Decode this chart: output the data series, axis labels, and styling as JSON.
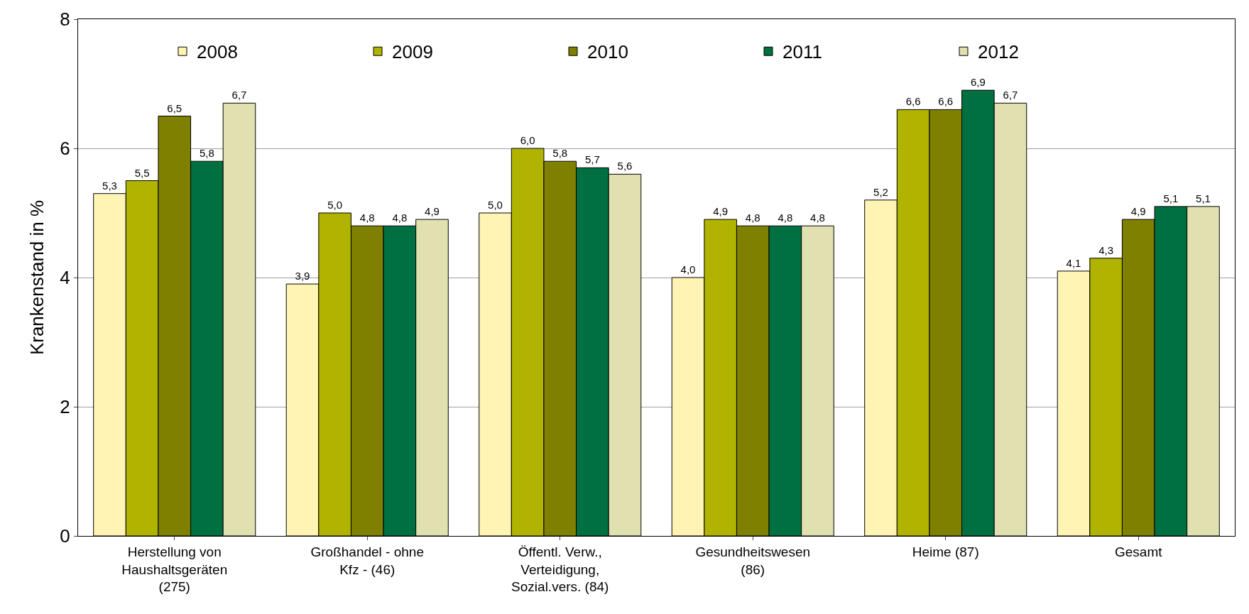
{
  "chart_data": {
    "type": "bar",
    "ylabel": "Krankenstand in %",
    "categories": [
      "Herstellung von Haushaltsgeräten (275)",
      "Großhandel - ohne Kfz - (46)",
      "Öffentl. Verw., Verteidigung, Sozial.vers. (84)",
      "Gesundheitswesen (86)",
      "Heime (87)",
      "Gesamt"
    ],
    "series": [
      {
        "name": "2008",
        "color": "#fff4b4",
        "values": [
          5.3,
          3.9,
          5.0,
          4.0,
          5.2,
          4.1
        ],
        "value_labels": [
          "5,3",
          "3,9",
          "5,0",
          "4,0",
          "5,2",
          "4,1"
        ]
      },
      {
        "name": "2009",
        "color": "#b0b400",
        "values": [
          5.5,
          5.0,
          6.0,
          4.9,
          6.6,
          4.3
        ],
        "value_labels": [
          "5,5",
          "5,0",
          "6,0",
          "4,9",
          "6,6",
          "4,3"
        ]
      },
      {
        "name": "2010",
        "color": "#808000",
        "values": [
          6.5,
          4.8,
          5.8,
          4.8,
          6.6,
          4.9
        ],
        "value_labels": [
          "6,5",
          "4,8",
          "5,8",
          "4,8",
          "6,6",
          "4,9"
        ]
      },
      {
        "name": "2011",
        "color": "#007040",
        "values": [
          5.8,
          4.8,
          5.7,
          4.8,
          6.9,
          5.1
        ],
        "value_labels": [
          "5,8",
          "4,8",
          "5,7",
          "4,8",
          "6,9",
          "5,1"
        ]
      },
      {
        "name": "2012",
        "color": "#e0e0b0",
        "values": [
          6.7,
          4.9,
          5.6,
          4.8,
          6.7,
          5.1
        ],
        "value_labels": [
          "6,7",
          "4,9",
          "5,6",
          "4,8",
          "6,7",
          "5,1"
        ]
      }
    ],
    "ylim": [
      0,
      8
    ],
    "yticks": [
      0,
      2,
      4,
      6,
      8
    ],
    "grid": "y",
    "legend": "top"
  }
}
